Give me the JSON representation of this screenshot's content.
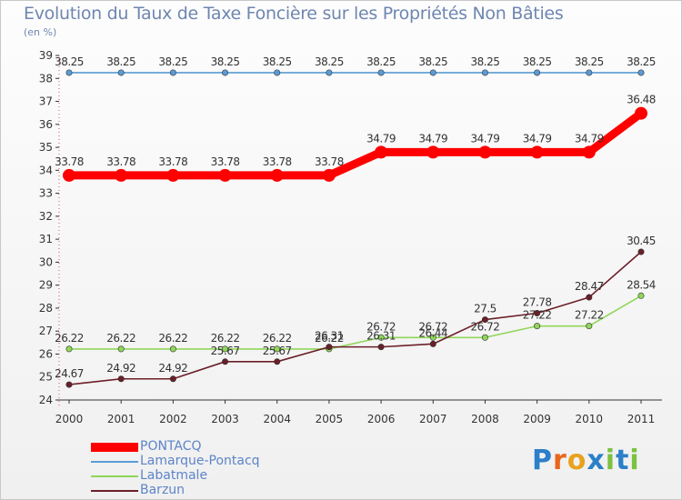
{
  "chart_data": {
    "type": "line",
    "title": "Evolution du Taux de Taxe Foncière sur les Propriétés Non Bâties",
    "ylabel": "(en %)",
    "xlabel": "",
    "ylim": [
      24,
      39
    ],
    "yticks": [
      "24",
      "25",
      "26",
      "27",
      "28",
      "29",
      "30",
      "31",
      "32",
      "33",
      "34",
      "35",
      "36",
      "37",
      "38",
      "39"
    ],
    "categories": [
      "2000",
      "2001",
      "2002",
      "2003",
      "2004",
      "2005",
      "2006",
      "2007",
      "2008",
      "2009",
      "2010",
      "2011"
    ],
    "series": [
      {
        "name": "PONTACQ",
        "color": "#ff0000",
        "values": [
          33.78,
          33.78,
          33.78,
          33.78,
          33.78,
          33.78,
          34.79,
          34.79,
          34.79,
          34.79,
          34.79,
          36.48
        ],
        "labels": [
          "33.78",
          "33.78",
          "33.78",
          "33.78",
          "33.78",
          "33.78",
          "34.79",
          "34.79",
          "34.79",
          "34.79",
          "34.79",
          "36.48"
        ]
      },
      {
        "name": "Lamarque-Pontacq",
        "color": "#5b9bd5",
        "values": [
          38.25,
          38.25,
          38.25,
          38.25,
          38.25,
          38.25,
          38.25,
          38.25,
          38.25,
          38.25,
          38.25,
          38.25
        ],
        "labels": [
          "38.25",
          "38.25",
          "38.25",
          "38.25",
          "38.25",
          "38.25",
          "38.25",
          "38.25",
          "38.25",
          "38.25",
          "38.25",
          "38.25"
        ]
      },
      {
        "name": "Labatmale",
        "color": "#8fd65a",
        "values": [
          26.22,
          26.22,
          26.22,
          26.22,
          26.22,
          26.22,
          26.72,
          26.72,
          26.72,
          27.22,
          27.22,
          28.54
        ],
        "labels": [
          "26.22",
          "26.22",
          "26.22",
          "26.22",
          "26.22",
          "26.22",
          "26.72",
          "26.72",
          "26.72",
          "27.22",
          "27.22",
          "28.54"
        ]
      },
      {
        "name": "Barzun",
        "color": "#6b1f28",
        "values": [
          24.67,
          24.92,
          24.92,
          25.67,
          25.67,
          26.31,
          26.31,
          26.44,
          27.5,
          27.78,
          28.47,
          30.45
        ],
        "labels": [
          "24.67",
          "24.92",
          "24.92",
          "25.67",
          "25.67",
          "26.31",
          "26.31",
          "26.44",
          "27.5",
          "27.78",
          "28.47",
          "30.45"
        ]
      }
    ],
    "grid": false,
    "legend_position": "bottom-left"
  },
  "logo": {
    "letters": [
      {
        "char": "P",
        "color": "#2c7fc9"
      },
      {
        "char": "r",
        "color": "#e8671d"
      },
      {
        "char": "o",
        "color": "#e8a21d"
      },
      {
        "char": "x",
        "color": "#2c7fc9"
      },
      {
        "char": "i",
        "color": "#7bc142"
      },
      {
        "char": "t",
        "color": "#2c7fc9"
      },
      {
        "char": "i",
        "color": "#7bc142"
      }
    ]
  }
}
